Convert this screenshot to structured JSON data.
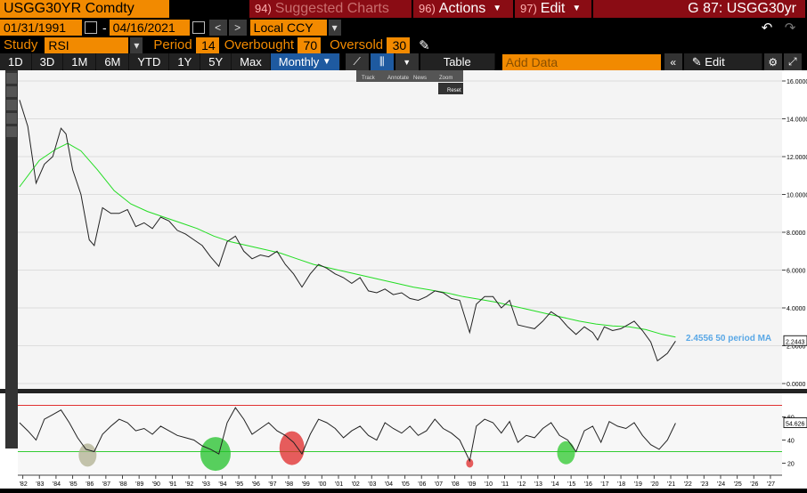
{
  "header": {
    "security": "USGG30YR Comdty",
    "tab_suggested_num": "94)",
    "tab_suggested_label": "Suggested Charts",
    "tab_actions_num": "96)",
    "tab_actions_label": "Actions",
    "tab_edit_num": "97)",
    "tab_edit_label": "Edit",
    "page_code": "G 87: USGG30yr"
  },
  "range": {
    "start_date": "01/31/1991",
    "separator": "-",
    "end_date": "04/16/2021",
    "currency": "Local CCY"
  },
  "study": {
    "label": "Study",
    "value": "RSI",
    "period_label": "Period",
    "period_value": "14",
    "overbought_label": "Overbought",
    "overbought_value": "70",
    "oversold_label": "Oversold",
    "oversold_value": "30"
  },
  "toolbar": {
    "tabs": [
      "1D",
      "3D",
      "1M",
      "6M",
      "YTD",
      "1Y",
      "5Y",
      "Max"
    ],
    "frequency": "Monthly",
    "table_label": "Table",
    "add_data_placeholder": "Add Data",
    "edit_chart_label": "Edit Chart"
  },
  "mini_toolbar": {
    "items": [
      "Track",
      "Annotate",
      "News",
      "Zoom"
    ],
    "reset": "Reset"
  },
  "chart_data": {
    "type": "line",
    "price_axis": {
      "ticks": [
        "16.0000",
        "14.0000",
        "12.0000",
        "10.0000",
        "8.0000",
        "6.0000",
        "4.0000",
        "2.0000",
        "0.0000"
      ],
      "ylim": [
        0,
        16
      ]
    },
    "x_ticks": [
      "'82",
      "'83",
      "'84",
      "'85",
      "'86",
      "'87",
      "'88",
      "'89",
      "'90",
      "'91",
      "'92",
      "'93",
      "'94",
      "'95",
      "'96",
      "'97",
      "'98",
      "'99",
      "'00",
      "'01",
      "'02",
      "'03",
      "'04",
      "'05",
      "'06",
      "'07",
      "'08",
      "'09",
      "'10",
      "'11",
      "'12",
      "'13",
      "'14",
      "'15",
      "'16",
      "'17",
      "'18",
      "'19",
      "'20",
      "'21",
      "'22",
      "'23",
      "'24",
      "'25",
      "'26",
      "'27"
    ],
    "series": [
      {
        "name": "",
        "x": [
          1981.8,
          1982.3,
          1982.8,
          1983.3,
          1983.8,
          1984.3,
          1984.6,
          1985.0,
          1985.5,
          1986.0,
          1986.3,
          1986.8,
          1987.3,
          1987.8,
          1988.3,
          1988.8,
          1989.3,
          1989.8,
          1990.3,
          1990.8,
          1991.3,
          1991.8,
          1992.3,
          1992.8,
          1993.3,
          1993.8,
          1994.3,
          1994.8,
          1995.3,
          1995.8,
          1996.3,
          1996.8,
          1997.3,
          1997.8,
          1998.3,
          1998.8,
          1999.3,
          1999.8,
          2000.3,
          2000.8,
          2001.3,
          2001.8,
          2002.3,
          2002.8,
          2003.3,
          2003.8,
          2004.3,
          2004.8,
          2005.3,
          2005.8,
          2006.3,
          2006.8,
          2007.3,
          2007.8,
          2008.3,
          2008.9,
          2009.3,
          2009.8,
          2010.3,
          2010.8,
          2011.3,
          2011.8,
          2012.3,
          2012.8,
          2013.3,
          2013.8,
          2014.3,
          2014.8,
          2015.3,
          2015.8,
          2016.3,
          2016.6,
          2017.0,
          2017.5,
          2018.0,
          2018.8,
          2019.3,
          2019.8,
          2020.2,
          2020.5,
          2020.8,
          2021.29
        ],
        "values": [
          15.0,
          13.6,
          10.6,
          11.6,
          12.0,
          13.5,
          13.2,
          11.3,
          10.0,
          7.6,
          7.3,
          9.3,
          9.0,
          9.0,
          9.2,
          8.3,
          8.5,
          8.2,
          8.8,
          8.6,
          8.1,
          7.9,
          7.6,
          7.3,
          6.7,
          6.2,
          7.5,
          7.8,
          7.0,
          6.6,
          6.8,
          6.7,
          7.0,
          6.3,
          5.8,
          5.1,
          5.8,
          6.3,
          6.1,
          5.8,
          5.6,
          5.3,
          5.6,
          4.9,
          4.8,
          5.0,
          4.7,
          4.8,
          4.5,
          4.4,
          4.6,
          4.9,
          4.8,
          4.5,
          4.4,
          2.7,
          4.2,
          4.6,
          4.6,
          4.0,
          4.4,
          3.1,
          3.0,
          2.9,
          3.3,
          3.8,
          3.5,
          3.0,
          2.6,
          3.0,
          2.7,
          2.3,
          3.0,
          2.8,
          2.9,
          3.3,
          2.8,
          2.2,
          1.2,
          1.4,
          1.6,
          2.2443
        ],
        "last_label": "2.2443"
      },
      {
        "name": "50 period MA",
        "x": [
          1981.8,
          1983.0,
          1984.0,
          1984.7,
          1985.5,
          1986.5,
          1987.5,
          1988.5,
          1989.5,
          1990.5,
          1991.5,
          1992.5,
          1993.5,
          1994.5,
          1995.5,
          1996.5,
          1997.5,
          1998.5,
          1999.5,
          2000.5,
          2001.5,
          2002.5,
          2003.5,
          2004.5,
          2005.5,
          2006.5,
          2007.5,
          2008.5,
          2009.5,
          2010.5,
          2011.5,
          2012.5,
          2013.5,
          2014.5,
          2015.5,
          2016.5,
          2017.5,
          2018.5,
          2019.5,
          2020.5,
          2021.29
        ],
        "values": [
          10.4,
          11.8,
          12.4,
          12.7,
          12.3,
          11.3,
          10.2,
          9.5,
          9.1,
          8.8,
          8.5,
          8.2,
          7.8,
          7.5,
          7.3,
          7.1,
          6.9,
          6.6,
          6.3,
          6.1,
          5.9,
          5.7,
          5.5,
          5.3,
          5.1,
          4.95,
          4.8,
          4.6,
          4.45,
          4.3,
          4.1,
          3.9,
          3.7,
          3.5,
          3.3,
          3.15,
          3.05,
          3.0,
          2.85,
          2.6,
          2.4556
        ]
      }
    ],
    "annotation": "2.4556 50 period MA",
    "rsi": {
      "name": "RSI",
      "ticks": [
        "60",
        "40",
        "20"
      ],
      "ylim": [
        15,
        75
      ],
      "overbought": 70,
      "oversold": 30,
      "last_label": "54.626",
      "x": [
        1981.8,
        1982.3,
        1982.8,
        1983.3,
        1983.8,
        1984.3,
        1984.8,
        1985.3,
        1985.8,
        1986.3,
        1986.8,
        1987.3,
        1987.8,
        1988.3,
        1988.8,
        1989.3,
        1989.8,
        1990.3,
        1990.8,
        1991.3,
        1991.8,
        1992.3,
        1992.8,
        1993.3,
        1993.8,
        1994.3,
        1994.8,
        1995.3,
        1995.8,
        1996.3,
        1996.8,
        1997.3,
        1997.8,
        1998.3,
        1998.8,
        1999.3,
        1999.8,
        2000.3,
        2000.8,
        2001.3,
        2001.8,
        2002.3,
        2002.8,
        2003.3,
        2003.8,
        2004.3,
        2004.8,
        2005.3,
        2005.8,
        2006.3,
        2006.8,
        2007.3,
        2007.8,
        2008.3,
        2008.9,
        2009.3,
        2009.8,
        2010.3,
        2010.8,
        2011.3,
        2011.8,
        2012.3,
        2012.8,
        2013.3,
        2013.8,
        2014.3,
        2014.8,
        2015.3,
        2015.8,
        2016.3,
        2016.8,
        2017.3,
        2017.8,
        2018.3,
        2018.8,
        2019.3,
        2019.8,
        2020.3,
        2020.8,
        2021.29
      ],
      "values": [
        55,
        48,
        40,
        58,
        62,
        66,
        55,
        42,
        32,
        30,
        45,
        52,
        58,
        55,
        48,
        50,
        45,
        52,
        48,
        44,
        42,
        40,
        35,
        32,
        28,
        55,
        68,
        58,
        45,
        50,
        55,
        48,
        44,
        38,
        28,
        45,
        58,
        55,
        50,
        42,
        48,
        52,
        44,
        40,
        55,
        50,
        46,
        52,
        44,
        48,
        58,
        50,
        46,
        40,
        22,
        52,
        58,
        55,
        46,
        56,
        38,
        44,
        42,
        50,
        55,
        44,
        40,
        30,
        48,
        52,
        38,
        56,
        52,
        50,
        55,
        44,
        36,
        32,
        40,
        54.626
      ]
    },
    "highlights": [
      {
        "x": 1985.9,
        "y": 27,
        "color": "#b0b090"
      },
      {
        "x": 1993.6,
        "y": 28,
        "color": "#22c22a"
      },
      {
        "x": 1998.2,
        "y": 33,
        "color": "#e02828"
      },
      {
        "x": 2008.9,
        "y": 20,
        "color": "#e02828"
      },
      {
        "x": 2014.7,
        "y": 29,
        "color": "#2ec82e"
      }
    ]
  },
  "colors": {
    "orange": "#f28a00",
    "price_line": "#222222",
    "ma_line": "#22dd22",
    "ma_label": "#5aa8e6",
    "overbought": "#e03030",
    "oversold": "#33cc33"
  }
}
